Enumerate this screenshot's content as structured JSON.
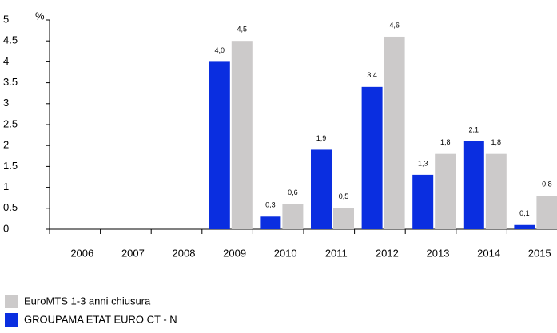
{
  "chart_data": {
    "type": "bar",
    "ylabel": "%",
    "categories": [
      "2006",
      "2007",
      "2008",
      "2009",
      "2010",
      "2011",
      "2012",
      "2013",
      "2014",
      "2015"
    ],
    "series": [
      {
        "name": "GROUPAMA ETAT EURO CT - N",
        "color": "#0a2ee0",
        "values": [
          null,
          null,
          null,
          4.0,
          0.3,
          1.9,
          3.4,
          1.3,
          2.1,
          0.1
        ],
        "value_labels": [
          null,
          null,
          null,
          "4,0",
          "0,3",
          "1,9",
          "3,4",
          "1,3",
          "2,1",
          "0,1"
        ]
      },
      {
        "name": "EuroMTS 1-3 anni chiusura",
        "color": "#cccaca",
        "values": [
          null,
          null,
          null,
          4.5,
          0.6,
          0.5,
          4.6,
          1.8,
          1.8,
          0.8
        ],
        "value_labels": [
          null,
          null,
          null,
          "4,5",
          "0,6",
          "0,5",
          "4,6",
          "1,8",
          "1,8",
          "0,8"
        ]
      }
    ],
    "ylim": [
      0,
      5
    ],
    "yticks": [
      0,
      0.5,
      1,
      1.5,
      2,
      2.5,
      3,
      3.5,
      4,
      4.5,
      5
    ]
  }
}
